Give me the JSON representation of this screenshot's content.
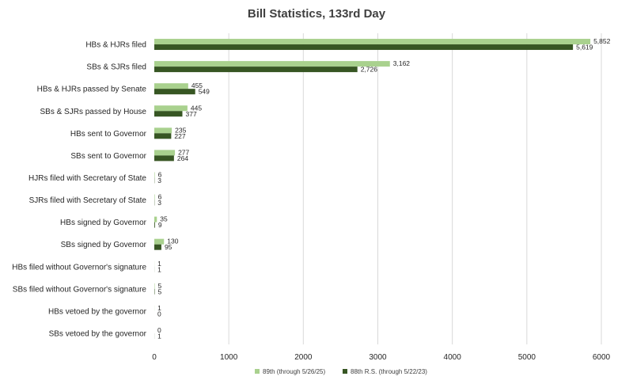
{
  "chart_data": {
    "type": "bar",
    "orientation": "horizontal",
    "title": "Bill Statistics, 133rd Day",
    "xlabel": "",
    "ylabel": "",
    "xlim": [
      0,
      6000
    ],
    "xticks": [
      0,
      1000,
      2000,
      3000,
      4000,
      5000,
      6000
    ],
    "grid": "vertical",
    "legend_position": "bottom",
    "colors": {
      "89th (through 5/26/25)": "#a9d18e",
      "88th R.S. (through 5/22/23)": "#375623"
    },
    "categories": [
      "HBs & HJRs filed",
      "SBs & SJRs filed",
      "HBs & HJRs passed by Senate",
      "SBs & SJRs passed by House",
      "HBs sent to Governor",
      "SBs sent to Governor",
      "HJRs filed with Secretary of State",
      "SJRs filed with Secretary of State",
      "HBs signed by Governor",
      "SBs signed by Governor",
      "HBs filed without Governor's signature",
      "SBs filed without Governor's signature",
      "HBs vetoed by the governor",
      "SBs vetoed by the governor"
    ],
    "series": [
      {
        "name": "89th (through 5/26/25)",
        "values": [
          5852,
          3162,
          455,
          445,
          235,
          277,
          6,
          6,
          35,
          130,
          1,
          5,
          1,
          0
        ],
        "labels": [
          "5,852",
          "3,162",
          "455",
          "445",
          "235",
          "277",
          "6",
          "6",
          "35",
          "130",
          "1",
          "5",
          "1",
          "0"
        ]
      },
      {
        "name": "88th R.S. (through 5/22/23)",
        "values": [
          5619,
          2726,
          549,
          377,
          227,
          264,
          3,
          3,
          9,
          95,
          1,
          5,
          0,
          1
        ],
        "labels": [
          "5,619",
          "2,726",
          "549",
          "377",
          "227",
          "264",
          "3",
          "3",
          "9",
          "95",
          "1",
          "5",
          "0",
          "1"
        ]
      }
    ]
  }
}
